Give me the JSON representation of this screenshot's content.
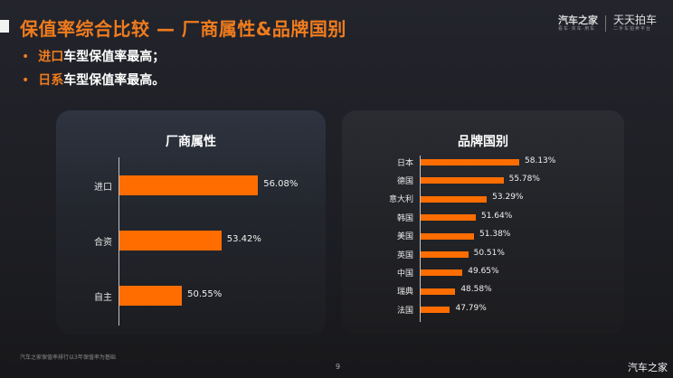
{
  "header": {
    "title": "保值率综合比较 — 厂商属性&品牌国别",
    "bullets": [
      {
        "highlight": "进口",
        "text": "车型保值率最高；"
      },
      {
        "highlight": "日系",
        "text": "车型保值率最高。"
      }
    ],
    "logo": {
      "brand1": "汽车之家",
      "brand1_sub": "看车·买车·用车",
      "brand2": "天天拍车",
      "brand2_sub": "二手车拍卖平台"
    }
  },
  "footer": {
    "note": "汽车之家保值率排行以3年保值率为基础",
    "page": "9",
    "watermark": "汽车之家"
  },
  "colors": {
    "accent": "#f07c1e",
    "bar": "#ff6d00",
    "background": "#1d1e23"
  },
  "chart_data": [
    {
      "type": "bar",
      "orientation": "horizontal",
      "title": "厂商属性",
      "categories": [
        "进口",
        "合资",
        "自主"
      ],
      "values": [
        56.08,
        53.42,
        50.55
      ],
      "labels": [
        "56.08%",
        "53.42%",
        "50.55%"
      ],
      "xlabel": "",
      "ylabel": "",
      "unit": "%",
      "grid": false
    },
    {
      "type": "bar",
      "orientation": "horizontal",
      "title": "品牌国别",
      "categories": [
        "日本",
        "德国",
        "意大利",
        "韩国",
        "美国",
        "英国",
        "中国",
        "瑞典",
        "法国"
      ],
      "values": [
        58.13,
        55.78,
        53.29,
        51.64,
        51.38,
        50.51,
        49.65,
        48.58,
        47.79
      ],
      "labels": [
        "58.13%",
        "55.78%",
        "53.29%",
        "51.64%",
        "51.38%",
        "50.51%",
        "49.65%",
        "48.58%",
        "47.79%"
      ],
      "xlabel": "",
      "ylabel": "",
      "unit": "%",
      "grid": false
    }
  ]
}
